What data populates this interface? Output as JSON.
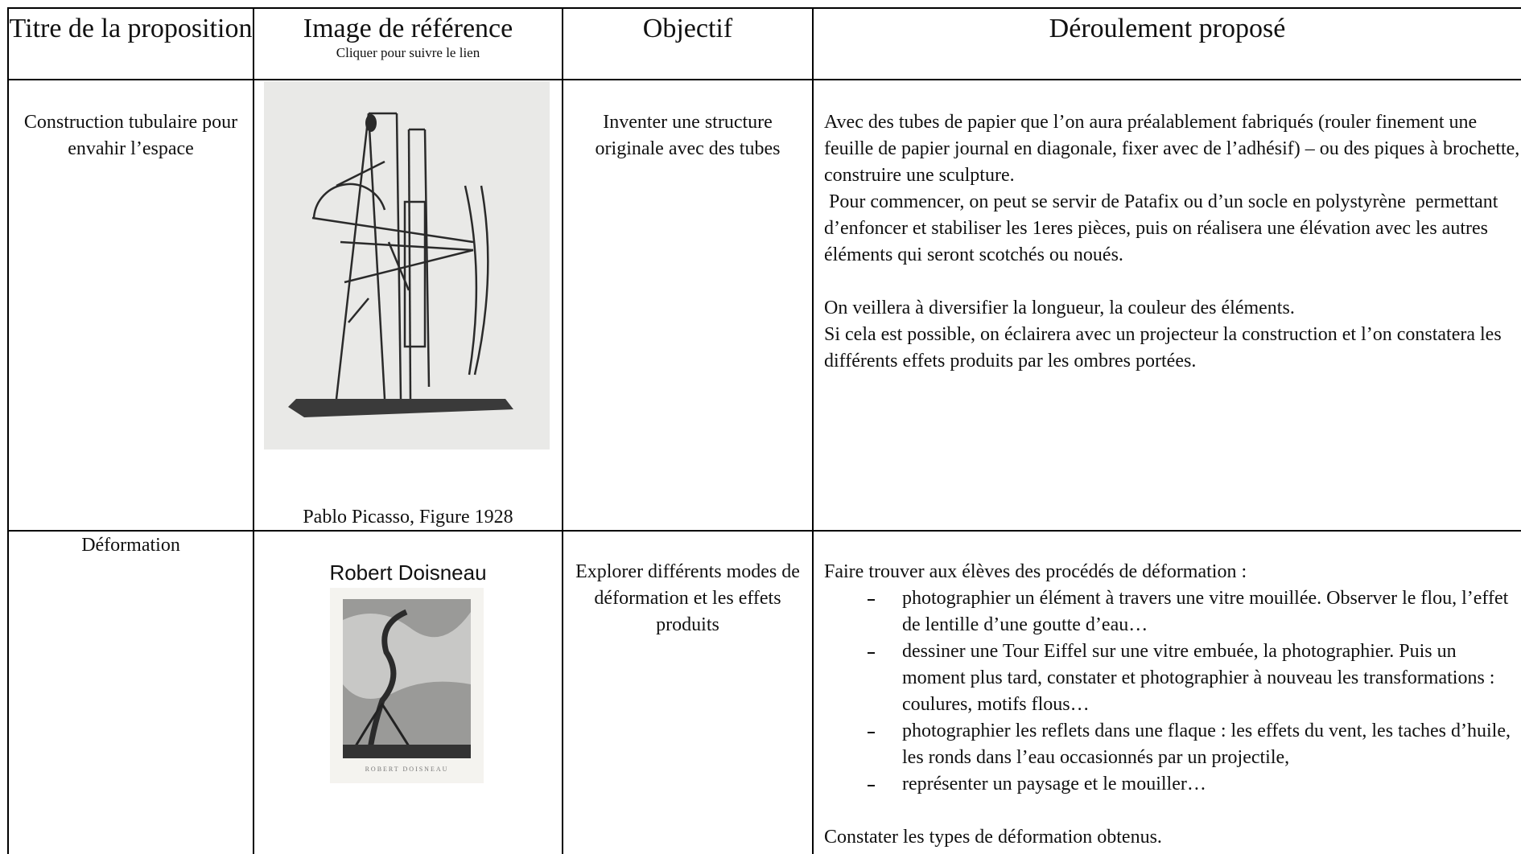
{
  "table": {
    "header": [
      {
        "title": "Titre de la proposition"
      },
      {
        "title": "Image de référence",
        "subtitle": "Cliquer pour suivre le lien"
      },
      {
        "title": "Objectif"
      },
      {
        "title": "Déroulement proposé"
      }
    ],
    "rows": [
      {
        "title": "Construction tubulaire pour envahir l’espace",
        "image_caption": "Pablo Picasso, Figure 1928",
        "objective": "Inventer une structure originale avec des tubes",
        "steps": [
          "Avec des tubes de papier que l’on aura préalablement fabriqués (rouler finement une feuille de papier journal en diagonale, fixer avec de l’adhésif) – ou des piques à brochette, construire une sculpture.",
          " Pour commencer, on peut se servir de Patafix ou d’un socle en polystyrène  permettant d’enfoncer et stabiliser les 1eres pièces, puis on réalisera une élévation avec les autres éléments qui seront scotchés ou noués.",
          "On veillera à diversifier la longueur, la couleur des éléments.",
          "Si cela est possible, on éclairera avec un projecteur la construction et l’on constatera les différents effets produits par les ombres portées."
        ]
      },
      {
        "title": "Déformation",
        "image_heading": "Robert Doisneau",
        "image_inscription": "ROBERT DOISNEAU",
        "objective": "Explorer différents modes de déformation et les effets produits",
        "intro": "Faire trouver aux élèves des procédés de déformation :",
        "bullets": [
          "photographier un élément à travers une vitre mouillée. Observer le flou, l’effet de lentille d’une goutte d’eau…",
          "dessiner une Tour Eiffel sur une vitre embuée, la photographier. Puis un moment plus tard, constater et photographier à nouveau les transformations : coulures, motifs flous…",
          "photographier les reflets dans une flaque : les effets du vent, les taches d’huile, les ronds dans l’eau occasionnés par un projectile,",
          "représenter un paysage et le mouiller…"
        ],
        "conclusion": "Constater les types de déformation obtenus."
      }
    ]
  }
}
